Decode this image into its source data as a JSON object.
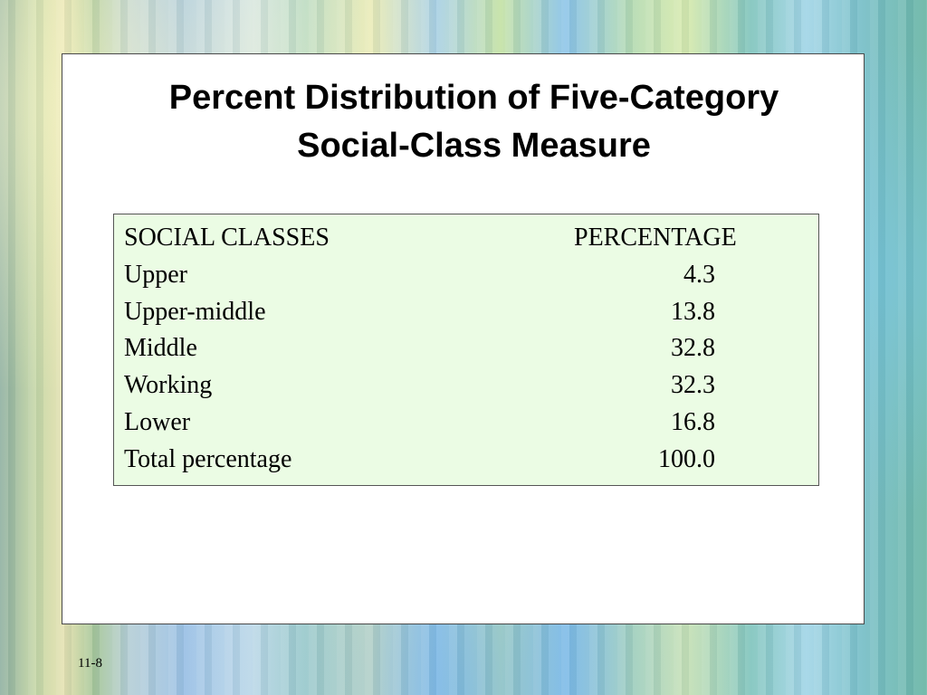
{
  "slide": {
    "title_line1": "Percent Distribution of Five-Category",
    "title_line2": "Social-Class Measure",
    "slide_number": "11-8"
  },
  "table": {
    "headers": [
      "SOCIAL CLASSES",
      "PERCENTAGE"
    ],
    "rows": [
      {
        "label": "Upper",
        "value": "4.3"
      },
      {
        "label": "Upper-middle",
        "value": "13.8"
      },
      {
        "label": "Middle",
        "value": "32.8"
      },
      {
        "label": "Working",
        "value": "32.3"
      },
      {
        "label": "Lower",
        "value": "16.8"
      },
      {
        "label": "Total percentage",
        "value": "100.0"
      }
    ]
  },
  "colors": {
    "table_background": "#ebfce4",
    "panel_background": "#ffffff",
    "text": "#000000"
  }
}
